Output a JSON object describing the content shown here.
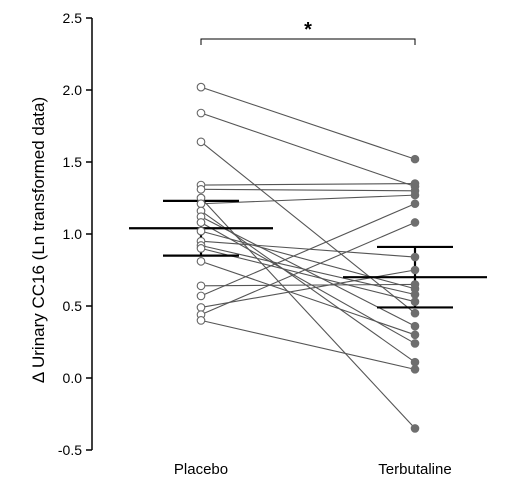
{
  "chart_data": {
    "type": "scatter",
    "ylabel": "Δ Urinary CC16 (Ln transformed data)",
    "categories": [
      "Placebo",
      "Terbutaline"
    ],
    "ylim": [
      -0.5,
      2.5
    ],
    "yticks": [
      "-0.5",
      "0.0",
      "0.5",
      "1.0",
      "1.5",
      "2.0",
      "2.5"
    ],
    "significance": "*",
    "pairs": [
      [
        2.02,
        1.52
      ],
      [
        1.84,
        1.33
      ],
      [
        1.64,
        0.45
      ],
      [
        1.34,
        1.35
      ],
      [
        1.31,
        1.3
      ],
      [
        1.25,
        -0.35
      ],
      [
        1.21,
        1.27
      ],
      [
        1.16,
        0.11
      ],
      [
        1.12,
        0.36
      ],
      [
        1.08,
        0.24
      ],
      [
        1.02,
        0.62
      ],
      [
        0.95,
        0.84
      ],
      [
        0.92,
        0.58
      ],
      [
        0.9,
        0.53
      ],
      [
        0.81,
        0.3
      ],
      [
        0.64,
        0.65
      ],
      [
        0.57,
        1.21
      ],
      [
        0.49,
        0.75
      ],
      [
        0.44,
        1.08
      ],
      [
        0.4,
        0.06
      ]
    ],
    "summary": [
      {
        "category": "Placebo",
        "mean": 1.04,
        "upper": 1.23,
        "lower": 0.85
      },
      {
        "category": "Terbutaline",
        "mean": 0.7,
        "upper": 0.91,
        "lower": 0.49
      }
    ],
    "colors": {
      "placebo_fill": "#ffffff",
      "marker_stroke": "#666666",
      "terbutaline_fill": "#6e6e6e",
      "line": "#555555",
      "summary": "#000000"
    }
  }
}
